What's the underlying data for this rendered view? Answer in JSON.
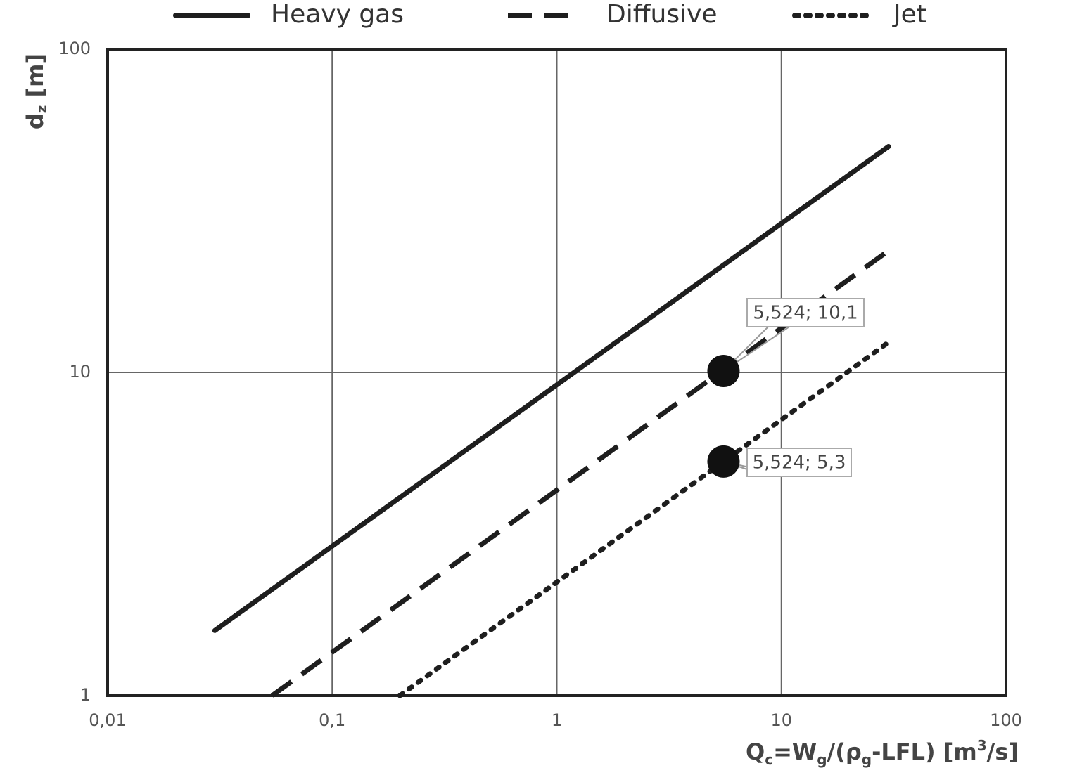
{
  "chart_data": {
    "type": "line",
    "log_x": true,
    "log_y": true,
    "grid": true,
    "legend": "top",
    "xlim": [
      0.01,
      100
    ],
    "ylim": [
      1,
      100
    ],
    "xticks": [
      {
        "value": 0.01,
        "label": "0,01"
      },
      {
        "value": 0.1,
        "label": "0,1"
      },
      1,
      10,
      100
    ],
    "yticks": [
      1,
      10,
      100
    ],
    "ylabel": [
      "d",
      "z",
      " [m]"
    ],
    "xlabel": [
      "Q",
      "c",
      "=W",
      "g",
      "/(ρ",
      "g",
      "-LFL) [m",
      "3",
      "/s]"
    ],
    "series": [
      {
        "name": "Heavy gas",
        "color": "#1e1e1e",
        "style": "solid",
        "x": [
          0.03,
          30
        ],
        "values": [
          1.59,
          50
        ]
      },
      {
        "name": "Diffusive",
        "color": "#1e1e1e",
        "style": "dashed",
        "x": [
          0.054,
          30
        ],
        "values": [
          1,
          23.8
        ]
      },
      {
        "name": "Jet",
        "color": "#1e1e1e",
        "style": "dotted",
        "x": [
          0.2,
          30
        ],
        "values": [
          1,
          12.4
        ]
      }
    ],
    "points": {
      "color": "#111111",
      "x": [
        5.524,
        5.524
      ],
      "values": [
        10.1,
        5.3
      ],
      "value_labels": [
        "5,524; 10,1",
        "5,524; 5,3"
      ]
    }
  }
}
